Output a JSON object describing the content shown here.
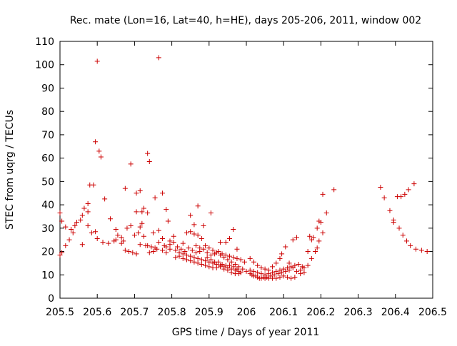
{
  "chart_data": {
    "type": "scatter",
    "title": "Rec. mate (Lon=16, Lat=40, h=HE), days 205-206, 2011, window 002",
    "xlabel": "GPS time / Days of year 2011",
    "ylabel": "STEC from uqrg / TECUs",
    "xlim": [
      205.5,
      206.5
    ],
    "ylim": [
      0,
      110
    ],
    "xticks": [
      "205.5",
      "205.6",
      "205.7",
      "205.8",
      "205.9",
      "206",
      "206.1",
      "206.2",
      "206.3",
      "206.4",
      "206.5"
    ],
    "yticks": [
      "0",
      "10",
      "20",
      "30",
      "40",
      "50",
      "60",
      "70",
      "80",
      "90",
      "100",
      "110"
    ],
    "grid": false,
    "marker": "+",
    "marker_color": "#cc0000",
    "series": [
      {
        "name": "STEC",
        "points": [
          [
            205.5,
            36.5
          ],
          [
            205.505,
            33.0
          ],
          [
            205.515,
            30.5
          ],
          [
            205.53,
            29.5
          ],
          [
            205.54,
            31.0
          ],
          [
            205.555,
            33.5
          ],
          [
            205.565,
            38.5
          ],
          [
            205.575,
            40.5
          ],
          [
            205.58,
            48.5
          ],
          [
            205.59,
            48.5
          ],
          [
            205.595,
            67.0
          ],
          [
            205.6,
            101.5
          ],
          [
            205.605,
            63.0
          ],
          [
            205.61,
            60.5
          ],
          [
            205.62,
            42.5
          ],
          [
            205.635,
            34.0
          ],
          [
            205.65,
            29.5
          ],
          [
            205.665,
            26.0
          ],
          [
            205.675,
            47.0
          ],
          [
            205.69,
            57.5
          ],
          [
            205.705,
            45.0
          ],
          [
            205.715,
            46.0
          ],
          [
            205.725,
            38.5
          ],
          [
            205.735,
            62.0
          ],
          [
            205.74,
            58.5
          ],
          [
            205.755,
            43.0
          ],
          [
            205.765,
            103.0
          ],
          [
            205.775,
            45.0
          ],
          [
            205.785,
            38.0
          ],
          [
            205.79,
            33.0
          ],
          [
            205.805,
            26.5
          ],
          [
            205.83,
            23.5
          ],
          [
            205.85,
            35.5
          ],
          [
            205.86,
            31.5
          ],
          [
            205.87,
            39.5
          ],
          [
            205.885,
            31.0
          ],
          [
            205.905,
            36.5
          ],
          [
            205.93,
            24.0
          ],
          [
            205.945,
            24.0
          ],
          [
            205.955,
            25.5
          ],
          [
            205.965,
            29.5
          ],
          [
            205.975,
            21.0
          ],
          [
            205.505,
            19.5
          ],
          [
            205.515,
            22.5
          ],
          [
            205.525,
            25.0
          ],
          [
            205.535,
            28.0
          ],
          [
            205.545,
            32.5
          ],
          [
            205.56,
            35.5
          ],
          [
            205.575,
            31.0
          ],
          [
            205.585,
            28.0
          ],
          [
            205.6,
            25.5
          ],
          [
            205.615,
            24.0
          ],
          [
            205.63,
            23.5
          ],
          [
            205.645,
            24.5
          ],
          [
            205.655,
            27.0
          ],
          [
            205.665,
            23.5
          ],
          [
            205.675,
            20.5
          ],
          [
            205.685,
            20.0
          ],
          [
            205.695,
            19.5
          ],
          [
            205.7,
            27.0
          ],
          [
            205.71,
            28.0
          ],
          [
            205.715,
            30.5
          ],
          [
            205.72,
            32.0
          ],
          [
            205.73,
            22.5
          ],
          [
            205.74,
            19.5
          ],
          [
            205.75,
            20.0
          ],
          [
            205.76,
            21.0
          ],
          [
            205.765,
            29.0
          ],
          [
            205.775,
            25.5
          ],
          [
            205.785,
            22.0
          ],
          [
            205.795,
            21.0
          ],
          [
            205.81,
            20.5
          ],
          [
            205.82,
            19.5
          ],
          [
            205.83,
            19.0
          ],
          [
            205.84,
            18.5
          ],
          [
            205.85,
            18.0
          ],
          [
            205.86,
            17.5
          ],
          [
            205.87,
            17.0
          ],
          [
            205.88,
            16.5
          ],
          [
            205.89,
            16.0
          ],
          [
            205.9,
            15.5
          ],
          [
            205.91,
            15.0
          ],
          [
            205.92,
            14.5
          ],
          [
            205.93,
            14.0
          ],
          [
            205.94,
            13.5
          ],
          [
            205.95,
            13.0
          ],
          [
            205.96,
            12.5
          ],
          [
            205.97,
            12.0
          ],
          [
            205.98,
            11.5
          ],
          [
            205.5,
            18.5
          ],
          [
            205.56,
            23.0
          ],
          [
            205.575,
            37.0
          ],
          [
            205.595,
            28.5
          ],
          [
            205.65,
            25.0
          ],
          [
            205.67,
            24.5
          ],
          [
            205.68,
            30.0
          ],
          [
            205.69,
            31.0
          ],
          [
            205.705,
            37.0
          ],
          [
            205.72,
            37.0
          ],
          [
            205.735,
            36.5
          ],
          [
            205.75,
            28.0
          ],
          [
            205.765,
            24.0
          ],
          [
            205.78,
            22.5
          ],
          [
            205.795,
            23.0
          ],
          [
            205.805,
            24.0
          ],
          [
            205.815,
            22.0
          ],
          [
            205.825,
            21.0
          ],
          [
            205.835,
            20.0
          ],
          [
            205.845,
            21.5
          ],
          [
            205.855,
            20.5
          ],
          [
            205.865,
            19.5
          ],
          [
            205.875,
            20.0
          ],
          [
            205.885,
            21.0
          ],
          [
            205.895,
            19.5
          ],
          [
            205.905,
            18.5
          ],
          [
            205.915,
            19.0
          ],
          [
            205.925,
            20.0
          ],
          [
            205.935,
            19.0
          ],
          [
            205.945,
            18.5
          ],
          [
            205.955,
            18.0
          ],
          [
            205.965,
            17.5
          ],
          [
            205.975,
            17.0
          ],
          [
            205.985,
            16.5
          ],
          [
            205.995,
            15.5
          ],
          [
            206.01,
            17.0
          ],
          [
            206.02,
            15.5
          ],
          [
            206.03,
            14.0
          ],
          [
            206.04,
            13.0
          ],
          [
            206.05,
            12.5
          ],
          [
            206.06,
            12.0
          ],
          [
            206.07,
            13.5
          ],
          [
            206.08,
            15.0
          ],
          [
            206.09,
            17.0
          ],
          [
            206.095,
            19.0
          ],
          [
            206.105,
            22.0
          ],
          [
            206.115,
            15.0
          ],
          [
            206.125,
            13.0
          ],
          [
            206.135,
            11.5
          ],
          [
            206.145,
            10.5
          ],
          [
            206.155,
            11.0
          ],
          [
            206.165,
            20.0
          ],
          [
            206.175,
            25.0
          ],
          [
            206.18,
            26.0
          ],
          [
            206.19,
            30.0
          ],
          [
            206.195,
            33.0
          ],
          [
            206.205,
            44.5
          ],
          [
            206.215,
            36.5
          ],
          [
            206.235,
            46.5
          ],
          [
            206.205,
            28.0
          ],
          [
            206.195,
            24.5
          ],
          [
            206.185,
            20.0
          ],
          [
            206.175,
            17.0
          ],
          [
            206.165,
            14.0
          ],
          [
            206.155,
            13.0
          ],
          [
            206.145,
            12.0
          ],
          [
            206.135,
            26.0
          ],
          [
            206.125,
            25.0
          ],
          [
            206.115,
            12.0
          ],
          [
            206.105,
            11.5
          ],
          [
            206.095,
            11.0
          ],
          [
            206.085,
            10.5
          ],
          [
            206.075,
            10.0
          ],
          [
            206.065,
            9.5
          ],
          [
            206.055,
            9.0
          ],
          [
            206.045,
            9.0
          ],
          [
            206.035,
            8.5
          ],
          [
            206.025,
            9.5
          ],
          [
            206.015,
            10.0
          ],
          [
            206.01,
            12.0
          ],
          [
            206.02,
            11.5
          ],
          [
            206.03,
            11.0
          ],
          [
            206.04,
            10.5
          ],
          [
            206.05,
            10.0
          ],
          [
            206.06,
            10.5
          ],
          [
            206.07,
            11.0
          ],
          [
            206.08,
            11.5
          ],
          [
            206.09,
            12.0
          ],
          [
            206.1,
            12.5
          ],
          [
            206.11,
            13.0
          ],
          [
            206.12,
            13.5
          ],
          [
            206.13,
            14.0
          ],
          [
            206.14,
            14.5
          ],
          [
            206.15,
            13.5
          ],
          [
            206.17,
            26.5
          ],
          [
            206.19,
            21.5
          ],
          [
            206.2,
            32.5
          ],
          [
            205.88,
            25.5
          ],
          [
            205.89,
            22.5
          ],
          [
            205.9,
            21.5
          ],
          [
            205.91,
            20.5
          ],
          [
            205.92,
            19.5
          ],
          [
            205.93,
            18.5
          ],
          [
            205.94,
            17.5
          ],
          [
            205.95,
            16.5
          ],
          [
            205.96,
            15.5
          ],
          [
            205.97,
            14.5
          ],
          [
            205.98,
            13.5
          ],
          [
            205.99,
            12.5
          ],
          [
            206.0,
            11.5
          ],
          [
            206.01,
            10.5
          ],
          [
            206.02,
            9.5
          ],
          [
            206.03,
            9.0
          ],
          [
            206.04,
            8.5
          ],
          [
            206.05,
            8.5
          ],
          [
            206.06,
            8.5
          ],
          [
            206.07,
            8.5
          ],
          [
            206.08,
            8.5
          ],
          [
            206.09,
            9.0
          ],
          [
            206.1,
            9.5
          ],
          [
            206.11,
            9.0
          ],
          [
            206.12,
            8.5
          ],
          [
            206.13,
            9.0
          ],
          [
            205.84,
            28.0
          ],
          [
            205.85,
            28.5
          ],
          [
            205.86,
            27.5
          ],
          [
            205.87,
            27.0
          ],
          [
            205.865,
            22.5
          ],
          [
            205.875,
            21.5
          ],
          [
            205.895,
            17.5
          ],
          [
            205.905,
            16.5
          ],
          [
            205.915,
            15.5
          ],
          [
            205.925,
            15.5
          ],
          [
            205.935,
            14.5
          ],
          [
            205.945,
            14.0
          ],
          [
            205.955,
            14.0
          ],
          [
            205.965,
            13.5
          ],
          [
            205.975,
            12.5
          ],
          [
            205.985,
            11.0
          ],
          [
            205.93,
            13.5
          ],
          [
            205.94,
            12.5
          ],
          [
            205.95,
            12.0
          ],
          [
            205.96,
            11.0
          ],
          [
            205.97,
            10.5
          ],
          [
            205.98,
            10.5
          ],
          [
            205.91,
            13.0
          ],
          [
            205.92,
            13.0
          ],
          [
            205.81,
            17.5
          ],
          [
            205.82,
            18.0
          ],
          [
            205.83,
            17.0
          ],
          [
            205.84,
            16.5
          ],
          [
            205.85,
            16.0
          ],
          [
            205.86,
            15.5
          ],
          [
            205.87,
            15.0
          ],
          [
            205.88,
            14.5
          ],
          [
            205.89,
            14.0
          ],
          [
            205.9,
            13.5
          ],
          [
            205.795,
            24.5
          ],
          [
            205.785,
            19.5
          ],
          [
            205.775,
            20.5
          ],
          [
            205.755,
            21.5
          ],
          [
            205.745,
            22.0
          ],
          [
            205.735,
            22.5
          ],
          [
            205.725,
            26.5
          ],
          [
            205.715,
            23.0
          ],
          [
            205.705,
            19.0
          ],
          [
            206.36,
            47.5
          ],
          [
            206.37,
            43.0
          ],
          [
            206.385,
            37.5
          ],
          [
            206.395,
            33.5
          ],
          [
            206.405,
            43.5
          ],
          [
            206.415,
            43.5
          ],
          [
            206.425,
            44.5
          ],
          [
            206.435,
            46.5
          ],
          [
            206.45,
            49.0
          ],
          [
            206.395,
            32.5
          ],
          [
            206.41,
            30.0
          ],
          [
            206.42,
            27.0
          ],
          [
            206.43,
            24.5
          ],
          [
            206.44,
            22.5
          ],
          [
            206.455,
            21.0
          ],
          [
            206.47,
            20.5
          ],
          [
            206.485,
            20.0
          ]
        ]
      }
    ]
  }
}
